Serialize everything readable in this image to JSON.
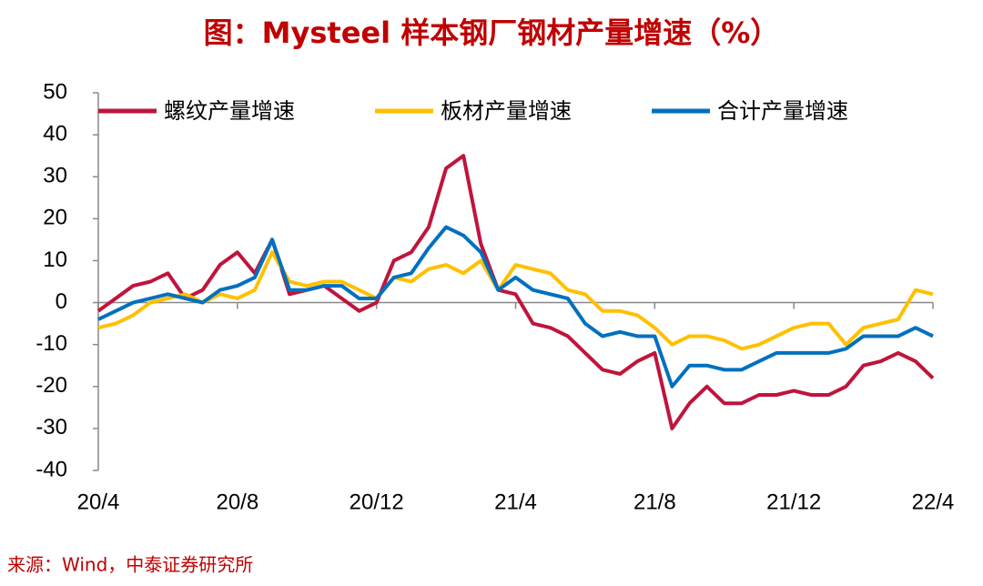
{
  "chart_data": {
    "type": "line",
    "title": "图：Mysteel 样本钢厂钢材产量增速（%）",
    "source": "来源：Wind，中泰证券研究所",
    "categories": [
      "20/4",
      null,
      null,
      null,
      null,
      null,
      null,
      null,
      "20/8",
      null,
      null,
      null,
      null,
      null,
      null,
      null,
      "20/12",
      null,
      null,
      null,
      null,
      null,
      null,
      null,
      "21/4",
      null,
      null,
      null,
      null,
      null,
      null,
      null,
      "21/8",
      null,
      null,
      null,
      null,
      null,
      null,
      null,
      "21/12",
      null,
      null,
      null,
      null,
      null,
      null,
      null,
      "22/4"
    ],
    "series": [
      {
        "name": "螺纹产量增速",
        "color": "#c0143c",
        "values": [
          -2,
          1,
          4,
          5,
          7,
          1,
          3,
          9,
          12,
          7,
          15,
          2,
          3,
          4,
          1,
          -2,
          0,
          10,
          12,
          18,
          32,
          35,
          14,
          3,
          2,
          -5,
          -6,
          -8,
          -12,
          -16,
          -17,
          -14,
          -12,
          -30,
          -24,
          -20,
          -24,
          -24,
          -22,
          -22,
          -21,
          -22,
          -22,
          -20,
          -15,
          -14,
          -12,
          -14,
          -18
        ]
      },
      {
        "name": "板材产量增速",
        "color": "#ffc000",
        "values": [
          -6,
          -5,
          -3,
          0,
          1,
          2,
          0,
          2,
          1,
          3,
          12,
          5,
          4,
          5,
          5,
          3,
          1,
          6,
          5,
          8,
          9,
          7,
          10,
          3,
          9,
          8,
          7,
          3,
          2,
          -2,
          -2,
          -3,
          -6,
          -10,
          -8,
          -8,
          -9,
          -11,
          -10,
          -8,
          -6,
          -5,
          -5,
          -10,
          -6,
          -5,
          -4,
          3,
          2
        ]
      },
      {
        "name": "合计产量增速",
        "color": "#0070c0",
        "values": [
          -4,
          -2,
          0,
          1,
          2,
          1,
          0,
          3,
          4,
          6,
          15,
          3,
          3,
          4,
          4,
          1,
          1,
          6,
          7,
          13,
          18,
          16,
          12,
          3,
          6,
          3,
          2,
          1,
          -5,
          -8,
          -7,
          -8,
          -8,
          -20,
          -15,
          -15,
          -16,
          -16,
          -14,
          -12,
          -12,
          -12,
          -12,
          -11,
          -8,
          -8,
          -8,
          -6,
          -8
        ]
      }
    ],
    "ylim": [
      -40,
      50
    ],
    "yticks": [
      -40,
      -30,
      -20,
      -10,
      0,
      10,
      20,
      30,
      40,
      50
    ]
  }
}
